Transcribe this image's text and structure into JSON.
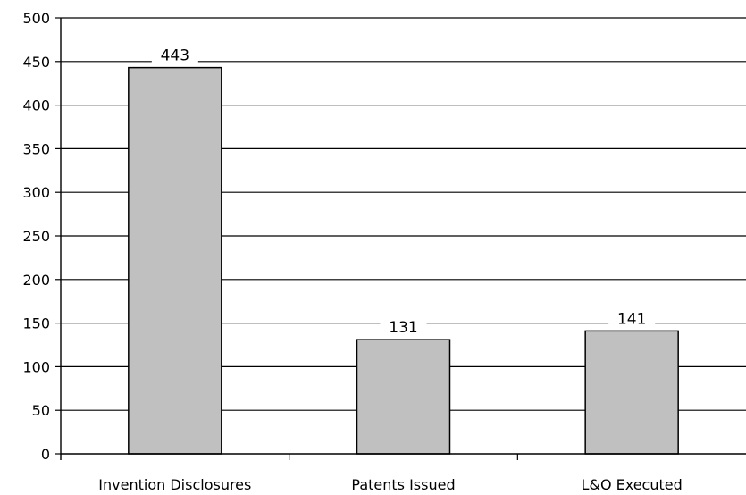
{
  "chart_data": {
    "type": "bar",
    "title": "",
    "xlabel": "",
    "ylabel": "",
    "categories": [
      "Invention Disclosures",
      "Patents Issued",
      "L&O Executed"
    ],
    "values": [
      443,
      131,
      141
    ],
    "ylim": [
      0,
      500
    ],
    "yticks": [
      "0",
      "50",
      "100",
      "150",
      "200",
      "250",
      "300",
      "350",
      "400",
      "450",
      "500"
    ],
    "data_labels": [
      "443",
      "131",
      "141"
    ],
    "grid": true,
    "legend": "none",
    "colors": {
      "bar_fill": "#c0c0c0",
      "bar_stroke": "#000000",
      "gridline": "#000000",
      "background": "#ffffff"
    }
  }
}
